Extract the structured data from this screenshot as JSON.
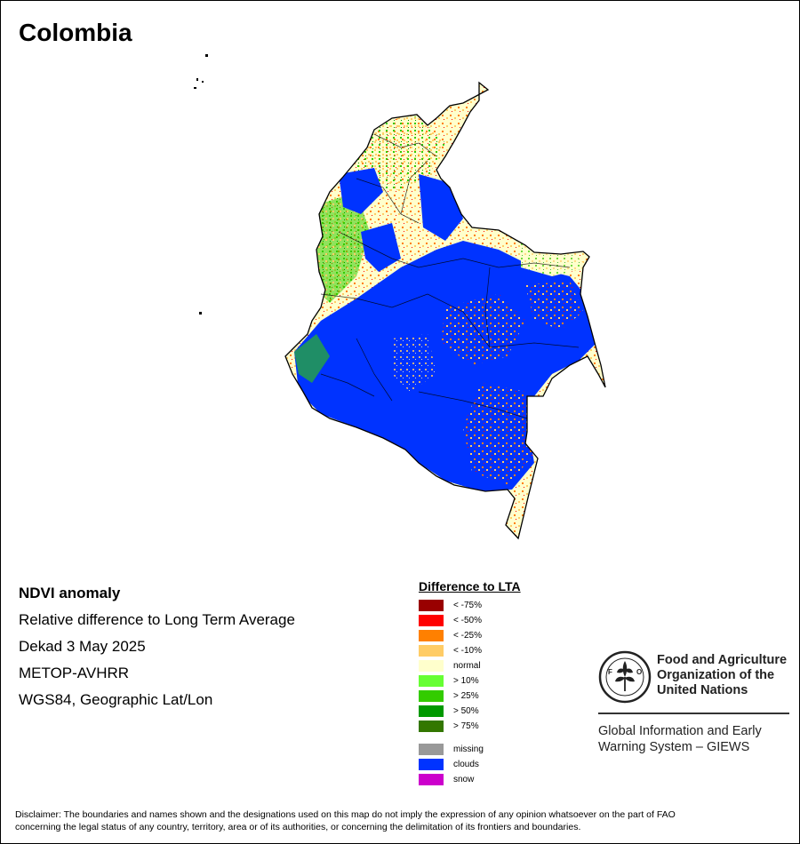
{
  "map": {
    "title": "Colombia",
    "legend_colors": {
      "lt_minus_75": "#990000",
      "lt_minus_50": "#ff0000",
      "lt_minus_25": "#ff8000",
      "lt_minus_10": "#ffcc66",
      "normal": "#ffffcc",
      "gt_10": "#66ff33",
      "gt_25": "#33cc00",
      "gt_50": "#009900",
      "gt_75": "#337700",
      "missing": "#999999",
      "clouds": "#0033ff",
      "snow": "#cc00cc"
    }
  },
  "info": {
    "line1": "NDVI anomaly",
    "line2": "Relative difference to Long Term Average",
    "line3": "Dekad 3 May 2025",
    "line4": "METOP-AVHRR",
    "line5": "WGS84, Geographic Lat/Lon"
  },
  "legend": {
    "title": "Difference to LTA",
    "items": [
      {
        "label": "< -75%",
        "color": "#990000"
      },
      {
        "label": "< -50%",
        "color": "#ff0000"
      },
      {
        "label": "< -25%",
        "color": "#ff8000"
      },
      {
        "label": "< -10%",
        "color": "#ffcc66"
      },
      {
        "label": "normal",
        "color": "#ffffcc"
      },
      {
        "label": "> 10%",
        "color": "#66ff33"
      },
      {
        "label": "> 25%",
        "color": "#33cc00"
      },
      {
        "label": "> 50%",
        "color": "#009900"
      },
      {
        "label": "> 75%",
        "color": "#337700"
      }
    ],
    "extra_items": [
      {
        "label": "missing",
        "color": "#999999"
      },
      {
        "label": "clouds",
        "color": "#0033ff"
      },
      {
        "label": "snow",
        "color": "#cc00cc"
      }
    ]
  },
  "fao": {
    "logo_text": "FAO FIAT PANIS",
    "org_line1": "Food and Agriculture",
    "org_line2": "Organization of the",
    "org_line3": "United Nations",
    "giews_line1": "Global Information and Early",
    "giews_line2": "Warning System – GIEWS"
  },
  "disclaimer": {
    "line1": "Disclaimer: The boundaries and names shown and the designations used on this map do not imply the expression of any opinion whatsoever on the part of FAO",
    "line2": "concerning the legal status of any country, territory, area or of its authorities, or concerning the delimitation of its frontiers and boundaries."
  }
}
